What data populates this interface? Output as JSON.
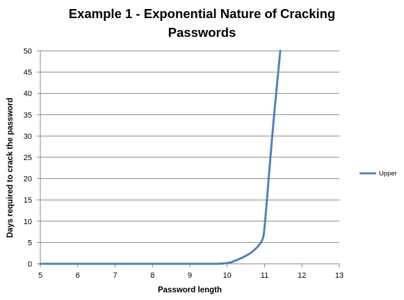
{
  "chart_data": {
    "type": "line",
    "title_lines": [
      "Example 1 - Exponential Nature of Cracking",
      "Passwords"
    ],
    "xlabel": "Password length",
    "ylabel": "Days required to crack the password",
    "xlim": [
      5,
      13
    ],
    "ylim": [
      0,
      50
    ],
    "x_ticks": [
      5,
      6,
      7,
      8,
      9,
      10,
      11,
      12,
      13
    ],
    "y_ticks": [
      0,
      5,
      10,
      15,
      20,
      25,
      30,
      35,
      40,
      45,
      50
    ],
    "grid": true,
    "legend_position": "right",
    "series": [
      {
        "name": "Upper",
        "color": "#4F81BD",
        "x": [
          5,
          6,
          7,
          8,
          9,
          9.3,
          10,
          10.3,
          10.6,
          10.8,
          10.95,
          11,
          11.2,
          11.42
        ],
        "y": [
          0,
          0,
          0,
          0,
          0,
          0,
          0,
          1,
          2.3,
          3.8,
          5.5,
          8,
          30,
          50
        ]
      }
    ]
  }
}
